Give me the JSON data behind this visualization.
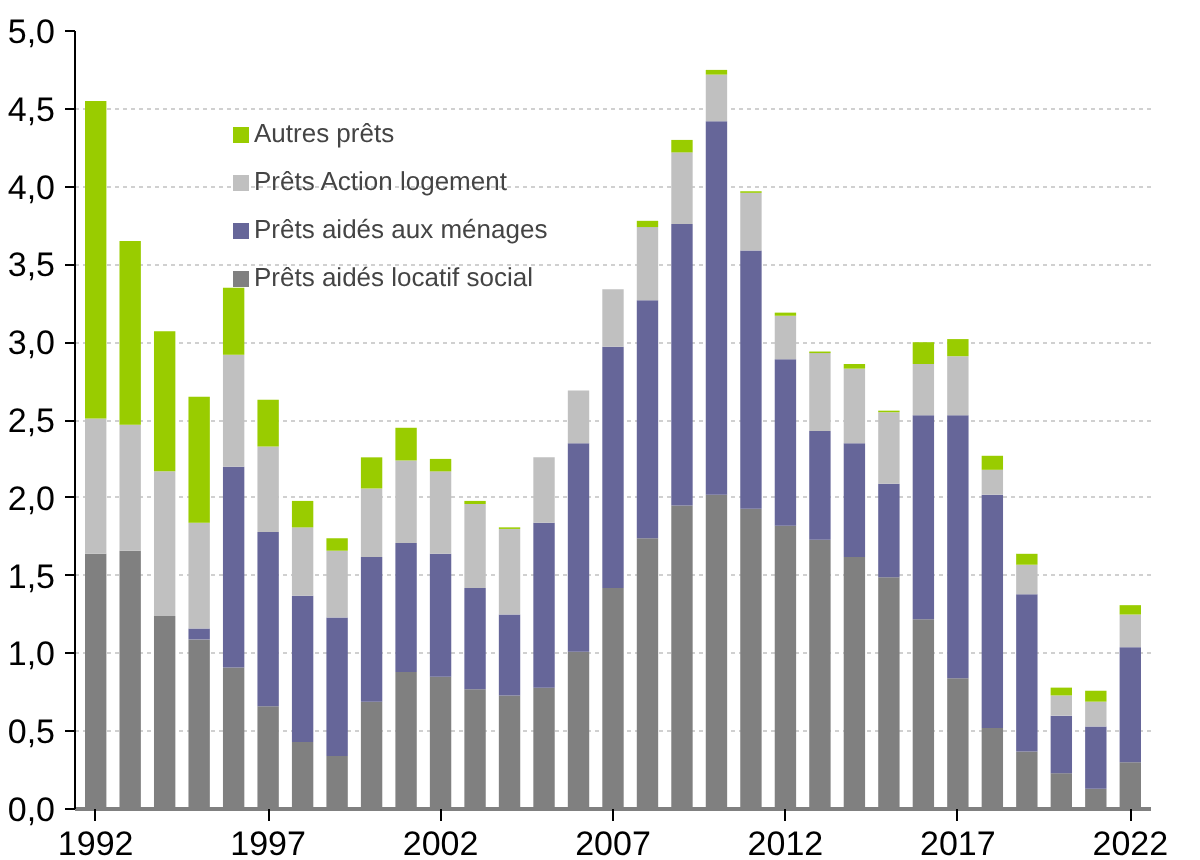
{
  "chart_data": {
    "type": "bar",
    "stacked": true,
    "categories": [
      "1992",
      null,
      null,
      null,
      null,
      "1997",
      null,
      null,
      null,
      null,
      "2002",
      null,
      null,
      null,
      null,
      "2007",
      null,
      null,
      null,
      null,
      "2012",
      null,
      null,
      null,
      null,
      "2017",
      null,
      null,
      null,
      null,
      "2022"
    ],
    "series": [
      {
        "name": "Prêts aidés locatif social",
        "color": "#808080",
        "values": [
          1.64,
          1.66,
          1.24,
          1.09,
          0.91,
          0.66,
          0.43,
          0.34,
          0.69,
          0.88,
          0.85,
          0.77,
          0.73,
          0.78,
          1.01,
          1.42,
          1.74,
          1.95,
          2.02,
          1.93,
          1.82,
          1.73,
          1.62,
          1.49,
          1.22,
          0.84,
          0.52,
          0.37,
          0.23,
          0.13,
          0.3
        ]
      },
      {
        "name": "Prêts aidés aux ménages",
        "color": "#666699",
        "values": [
          0,
          0,
          0,
          0.07,
          1.29,
          1.12,
          0.94,
          0.89,
          0.93,
          0.83,
          0.79,
          0.65,
          0.52,
          1.06,
          1.34,
          1.55,
          1.53,
          1.81,
          2.4,
          1.66,
          1.07,
          0.7,
          0.73,
          0.6,
          1.31,
          1.69,
          1.5,
          1.01,
          0.37,
          0.4,
          0.74
        ]
      },
      {
        "name": "Prêts Action logement",
        "color": "#c0c0c0",
        "values": [
          0.87,
          0.81,
          0.93,
          0.68,
          0.72,
          0.55,
          0.44,
          0.43,
          0.44,
          0.53,
          0.53,
          0.54,
          0.55,
          0.42,
          0.34,
          0.37,
          0.47,
          0.46,
          0.3,
          0.37,
          0.28,
          0.5,
          0.48,
          0.46,
          0.33,
          0.38,
          0.16,
          0.19,
          0.13,
          0.16,
          0.21
        ]
      },
      {
        "name": "Autres prêts",
        "color": "#99cc00",
        "values": [
          2.04,
          1.18,
          0.9,
          0.81,
          0.43,
          0.3,
          0.17,
          0.08,
          0.2,
          0.21,
          0.08,
          0.02,
          0.01,
          0,
          0,
          0,
          0.04,
          0.08,
          0.03,
          0.01,
          0.02,
          0.01,
          0.03,
          0.01,
          0.14,
          0.11,
          0.09,
          0.07,
          0.05,
          0.07,
          0.06
        ]
      }
    ],
    "ylim": [
      0,
      5
    ],
    "yticks": [
      {
        "value": 0,
        "label": "0,0"
      },
      {
        "value": 0.5,
        "label": "0,5"
      },
      {
        "value": 1,
        "label": "1,0"
      },
      {
        "value": 1.5,
        "label": "1,5"
      },
      {
        "value": 2,
        "label": "2,0"
      },
      {
        "value": 2.5,
        "label": "2,5"
      },
      {
        "value": 3,
        "label": "3,0"
      },
      {
        "value": 3.5,
        "label": "3,5"
      },
      {
        "value": 4,
        "label": "4,0"
      },
      {
        "value": 4.5,
        "label": "4,5"
      },
      {
        "value": 5,
        "label": "5,0"
      }
    ],
    "grid": "y",
    "legend": "top left"
  }
}
